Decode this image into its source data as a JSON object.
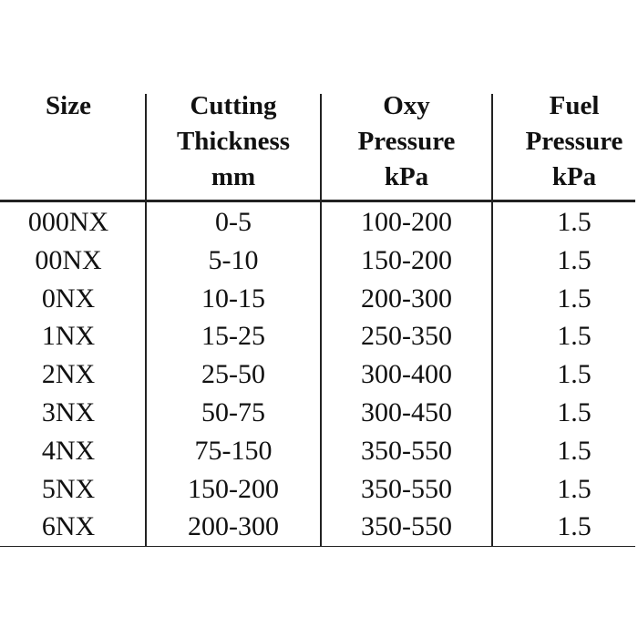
{
  "table": {
    "headers": [
      [
        "Size"
      ],
      [
        "Cutting",
        "Thickness",
        "mm"
      ],
      [
        "Oxy",
        "Pressure",
        "kPa"
      ],
      [
        "Fuel",
        "Pressure",
        "kPa"
      ]
    ],
    "rows": [
      [
        "000NX",
        "0-5",
        "100-200",
        "1.5"
      ],
      [
        "00NX",
        "5-10",
        "150-200",
        "1.5"
      ],
      [
        "0NX",
        "10-15",
        "200-300",
        "1.5"
      ],
      [
        "1NX",
        "15-25",
        "250-350",
        "1.5"
      ],
      [
        "2NX",
        "25-50",
        "300-400",
        "1.5"
      ],
      [
        "3NX",
        "50-75",
        "300-450",
        "1.5"
      ],
      [
        "4NX",
        "75-150",
        "350-550",
        "1.5"
      ],
      [
        "5NX",
        "150-200",
        "350-550",
        "1.5"
      ],
      [
        "6NX",
        "200-300",
        "350-550",
        "1.5"
      ]
    ]
  }
}
